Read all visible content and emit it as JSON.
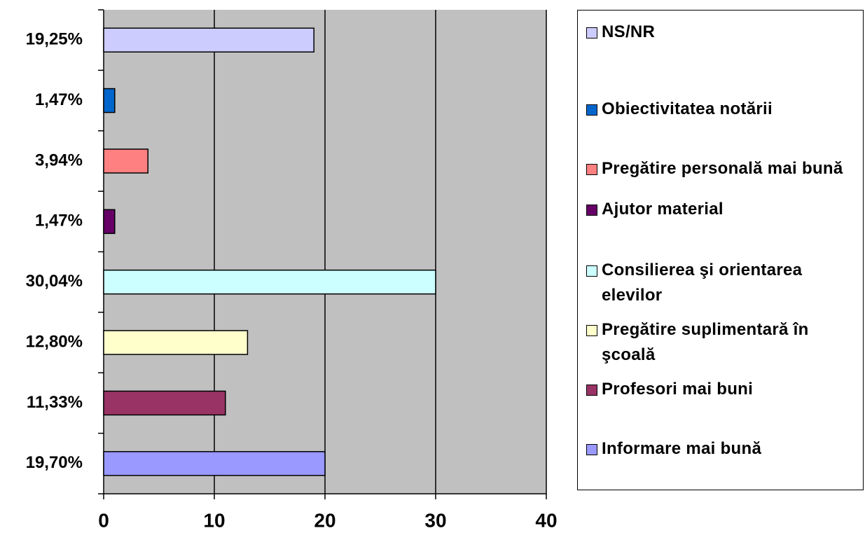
{
  "chart_data": {
    "type": "bar",
    "orientation": "horizontal",
    "categories": [
      "19,25%",
      "1,47%",
      "3,94%",
      "1,47%",
      "30,04%",
      "12,80%",
      "11,33%",
      "19,70%"
    ],
    "series": [
      {
        "name": "NS/NR",
        "color": "#ccccff",
        "values": [
          19,
          null,
          null,
          null,
          null,
          null,
          null,
          null
        ]
      },
      {
        "name": "Obiectivitatea notării",
        "color": "#0066cc",
        "values": [
          null,
          1,
          null,
          null,
          null,
          null,
          null,
          null
        ]
      },
      {
        "name": "Pregătire personală mai bună",
        "color": "#ff8080",
        "values": [
          null,
          null,
          4,
          null,
          null,
          null,
          null,
          null
        ]
      },
      {
        "name": "Ajutor material",
        "color": "#660066",
        "values": [
          null,
          null,
          null,
          1,
          null,
          null,
          null,
          null
        ]
      },
      {
        "name": "Consilierea şi orientarea elevilor",
        "color": "#ccffff",
        "values": [
          null,
          null,
          null,
          null,
          30,
          null,
          null,
          null
        ]
      },
      {
        "name": "Pregătire suplimentară în şcoală",
        "color": "#ffffcc",
        "values": [
          null,
          null,
          null,
          null,
          null,
          13,
          null,
          null
        ]
      },
      {
        "name": "Profesori mai buni",
        "color": "#993366",
        "values": [
          null,
          null,
          null,
          null,
          null,
          null,
          11,
          null
        ]
      },
      {
        "name": "Informare mai bună",
        "color": "#9999ff",
        "values": [
          null,
          null,
          null,
          null,
          null,
          null,
          null,
          20
        ]
      }
    ],
    "xlim": [
      0,
      40
    ],
    "xticks": [
      0,
      10,
      20,
      30,
      40
    ],
    "grid": true,
    "plot_color": "#c0c0c0",
    "legend": "right"
  }
}
